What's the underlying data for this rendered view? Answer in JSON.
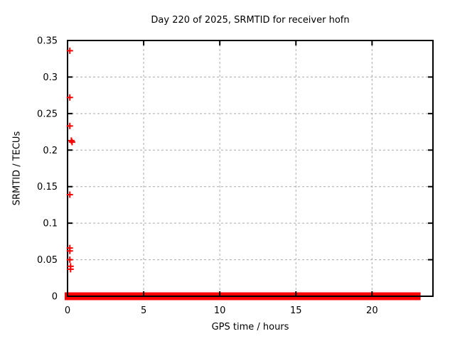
{
  "chart_data": {
    "type": "scatter",
    "title": "Day 220 of 2025, SRMTID for receiver hofn",
    "xlabel": "GPS time / hours",
    "ylabel": "SRMTID / TECUs",
    "xlim": [
      0,
      24
    ],
    "ylim": [
      0,
      0.35
    ],
    "grid": true,
    "legend": "none",
    "marker": "plus",
    "series_name": "SRMTID",
    "series_color": "#ff0000",
    "grid_color": "#aaaaaa",
    "axis_color": "#000000",
    "xticks": [
      {
        "v": 0,
        "label": "0"
      },
      {
        "v": 5,
        "label": "5"
      },
      {
        "v": 10,
        "label": "10"
      },
      {
        "v": 15,
        "label": "15"
      },
      {
        "v": 20,
        "label": "20"
      }
    ],
    "yticks": [
      {
        "v": 0,
        "label": "0"
      },
      {
        "v": 0.05,
        "label": "0.05"
      },
      {
        "v": 0.1,
        "label": "0.1"
      },
      {
        "v": 0.15,
        "label": "0.15"
      },
      {
        "v": 0.2,
        "label": "0.2"
      },
      {
        "v": 0.25,
        "label": "0.25"
      },
      {
        "v": 0.3,
        "label": "0.3"
      },
      {
        "v": 0.35,
        "label": "0.35"
      }
    ],
    "points": [
      {
        "x": 0.15,
        "y": 0.336
      },
      {
        "x": 0.15,
        "y": 0.272
      },
      {
        "x": 0.15,
        "y": 0.233
      },
      {
        "x": 0.25,
        "y": 0.213
      },
      {
        "x": 0.3,
        "y": 0.211
      },
      {
        "x": 0.15,
        "y": 0.139
      },
      {
        "x": 0.15,
        "y": 0.066
      },
      {
        "x": 0.15,
        "y": 0.062
      },
      {
        "x": 0.15,
        "y": 0.05
      },
      {
        "x": 0.2,
        "y": 0.041
      },
      {
        "x": 0.2,
        "y": 0.037
      }
    ],
    "zero_band": {
      "y": 0,
      "x_start": 0,
      "x_end": 23,
      "note": "dense overlapping plus markers at y≈0 forming a thick red band"
    }
  }
}
